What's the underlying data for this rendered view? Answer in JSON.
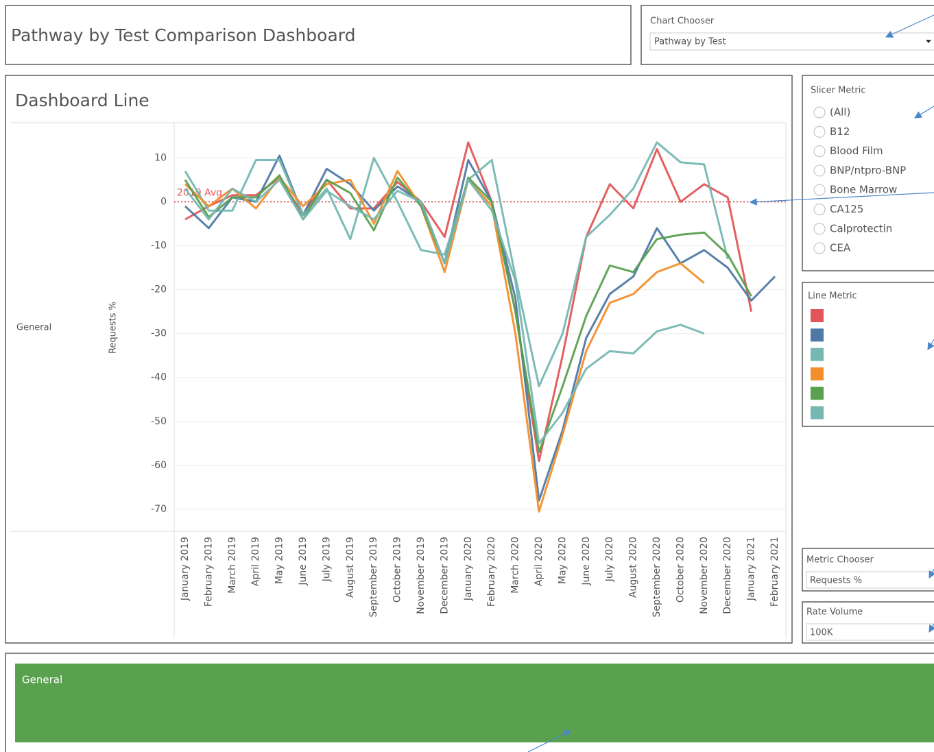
{
  "header": {
    "title": "Pathway by Test Comparison Dashboard"
  },
  "chart_chooser": {
    "label": "Chart Chooser",
    "value": "Pathway by Test"
  },
  "chart_data": {
    "type": "line",
    "title": "Dashboard Line",
    "row_label": "General",
    "y_label": "Requests %",
    "categories": [
      "January 2019",
      "February 2019",
      "March 2019",
      "April 2019",
      "May 2019",
      "June 2019",
      "July 2019",
      "August 2019",
      "September 2019",
      "October 2019",
      "November 2019",
      "December 2019",
      "January 2020",
      "February 2020",
      "March 2020",
      "April 2020",
      "May 2020",
      "June 2020",
      "July 2020",
      "August 2020",
      "September 2020",
      "October 2020",
      "November 2020",
      "December 2020",
      "January 2021",
      "February 2021"
    ],
    "series": [
      {
        "color": "#e15759",
        "values": [
          -4,
          -1,
          1.5,
          1.5,
          5.5,
          -3,
          5,
          -1.5,
          -1.5,
          4.5,
          0,
          -8,
          13.5,
          0,
          -25,
          -59,
          -35,
          -8,
          4,
          -1.5,
          12,
          0,
          4,
          1,
          -25,
          null
        ]
      },
      {
        "color": "#4e79a7",
        "values": [
          -1,
          -6,
          1,
          0,
          10.5,
          -3,
          7.5,
          4,
          -2,
          3.5,
          0,
          -14,
          9.5,
          0,
          -22,
          -68,
          -52,
          -31,
          -21,
          -17,
          -6,
          -14,
          -11,
          -15,
          -22.5,
          -17
        ]
      },
      {
        "color": "#76b7b2",
        "values": [
          7,
          -2,
          -2,
          9.5,
          9.5,
          -3,
          3,
          -8.5,
          10,
          0,
          -11,
          -12,
          5,
          9.5,
          -17,
          -42,
          -30,
          -8,
          -3,
          3,
          13.5,
          9,
          8.5,
          -13,
          null,
          null
        ]
      },
      {
        "color": "#f28e2b",
        "values": [
          4,
          -1,
          3,
          -1.5,
          5.5,
          -1,
          4,
          5,
          -5,
          7,
          -1,
          -16,
          5,
          -1,
          -30,
          -70.5,
          -53,
          -34,
          -23,
          -21,
          -16,
          -14,
          -18.5,
          null,
          null,
          null
        ]
      },
      {
        "color": "#59a14f",
        "values": [
          5,
          -3.5,
          1,
          1,
          6,
          -4,
          5,
          2,
          -6.5,
          5.5,
          -1,
          -14,
          5.5,
          0,
          -25,
          -57,
          -42,
          -26,
          -14.5,
          -16,
          -8.5,
          -7.5,
          -7,
          -12,
          -21.5,
          null
        ]
      },
      {
        "color": "#76b7b2",
        "values": [
          3,
          -4,
          3,
          0,
          5,
          -4,
          2.5,
          -1,
          -4,
          2.5,
          0,
          -14,
          5,
          -2,
          -18,
          -55,
          -48,
          -38,
          -34,
          -34.5,
          -29.5,
          -28,
          -30,
          null,
          null,
          null
        ]
      }
    ],
    "ylim": [
      -75,
      18
    ],
    "yticks": [
      10,
      0,
      -10,
      -20,
      -30,
      -40,
      -50,
      -60,
      -70
    ],
    "grid": true,
    "reference_line": {
      "value": 0,
      "label": "2019 Avg",
      "color": "#e15759"
    }
  },
  "slicer": {
    "label": "Slicer Metric",
    "options": [
      "(All)",
      "B12",
      "Blood Film",
      "BNP/ntpro-BNP",
      "Bone Marrow",
      "CA125",
      "Calprotectin",
      "CEA"
    ]
  },
  "line_metric": {
    "label": "Line Metric"
  },
  "metric_chooser": {
    "label": "Metric Chooser",
    "value": "Requests %"
  },
  "rate_volume": {
    "label": "Rate Volume",
    "value": "100K"
  },
  "footer": {
    "label": "General",
    "color": "#59a14f"
  }
}
